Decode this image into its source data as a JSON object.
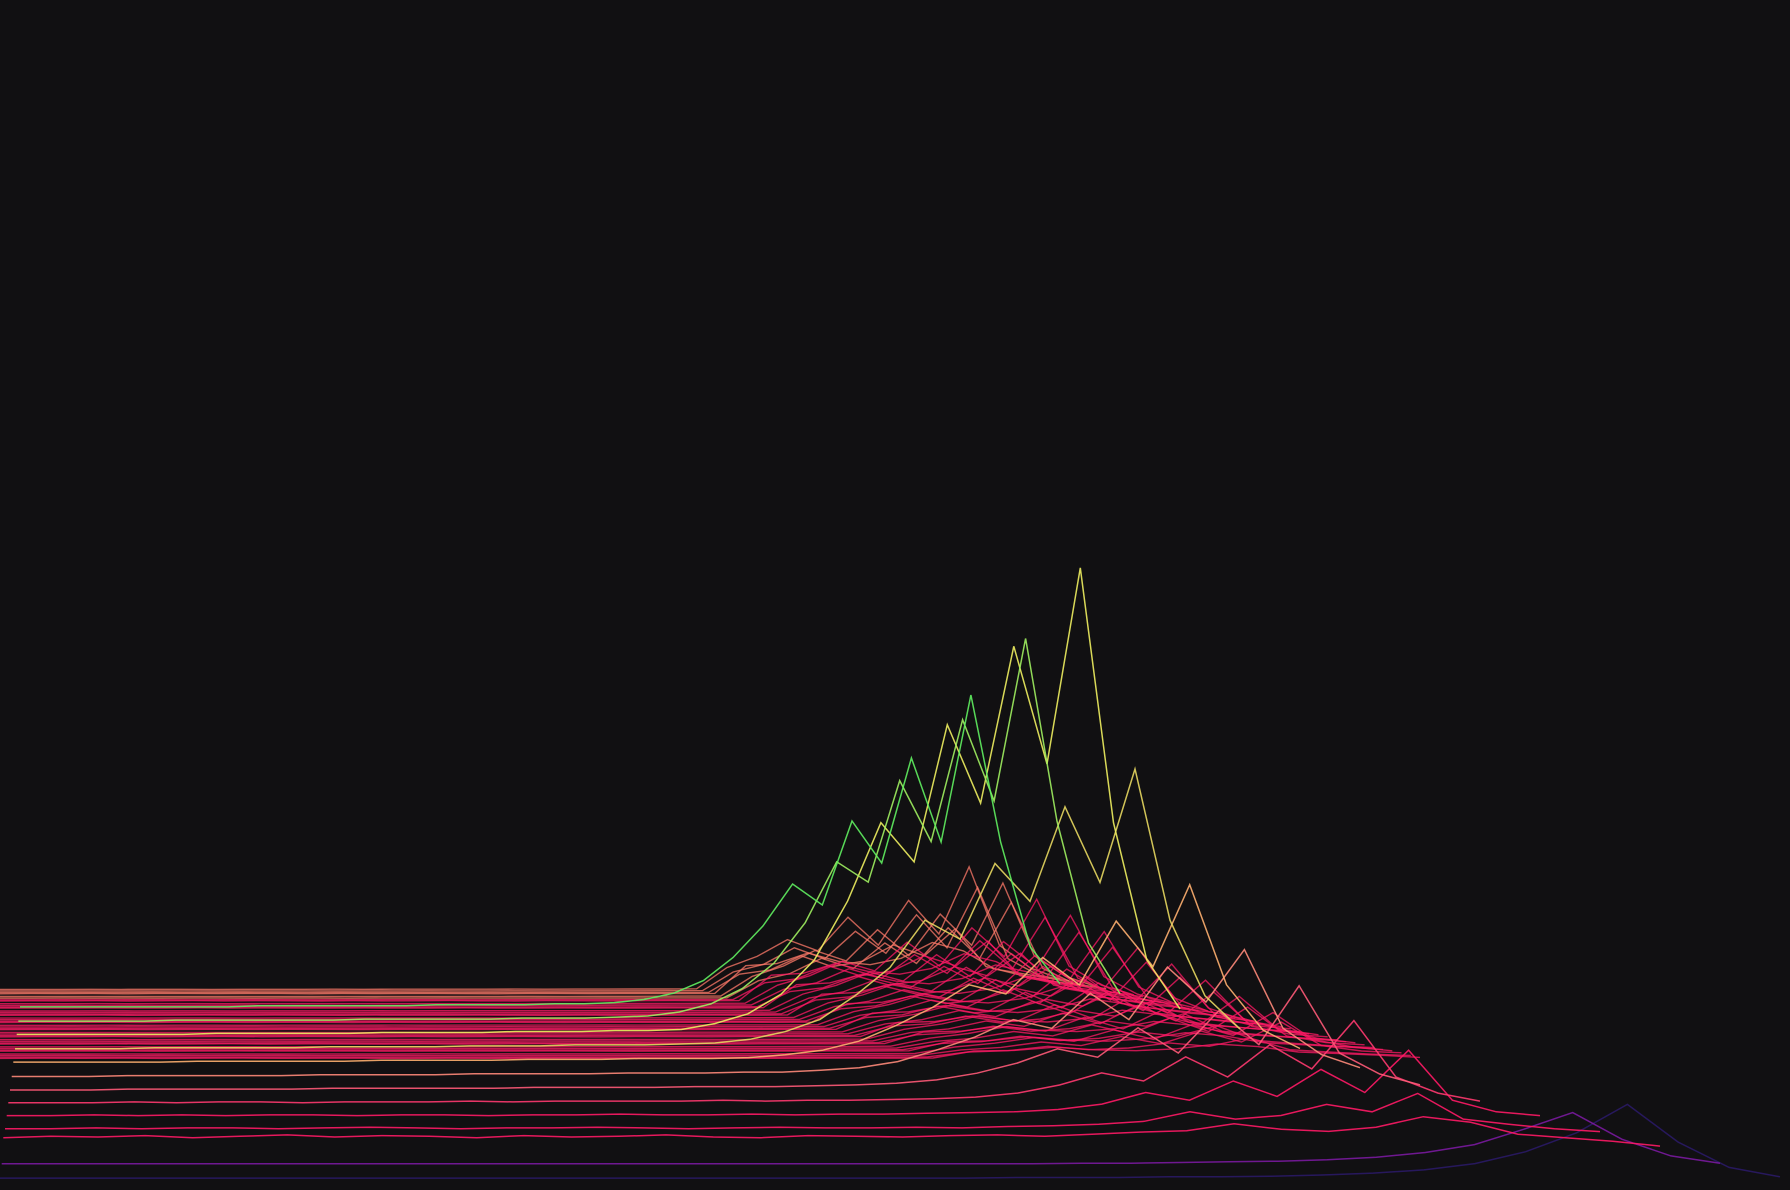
{
  "chart_data": {
    "type": "line",
    "background_color": "#111012",
    "grid": false,
    "legend": "none",
    "color_stops": [
      "#2a1a66",
      "#7a1aa0",
      "#ff1a66",
      "#ff7a7a",
      "#f0f060",
      "#60f060"
    ],
    "series": [
      {
        "color": "#2a1a66",
        "values": [
          0.3,
          0.3,
          0.3,
          0.3,
          0.3,
          0.3,
          0.3,
          0.3,
          0.3,
          0.3,
          0.3,
          0.3,
          0.3,
          0.3,
          0.3,
          0.3,
          0.3,
          0.3,
          0.3,
          0.3,
          0.4,
          0.4,
          0.4,
          0.5,
          0.5,
          0.6,
          0.8,
          1.1,
          1.6,
          2.6,
          4.5,
          7.5,
          12,
          6.0,
          2.0,
          0.5
        ]
      },
      {
        "color": "#7a1aa0",
        "values": [
          0.3,
          0.3,
          0.3,
          0.3,
          0.3,
          0.3,
          0.3,
          0.3,
          0.3,
          0.3,
          0.3,
          0.3,
          0.3,
          0.3,
          0.3,
          0.3,
          0.3,
          0.3,
          0.3,
          0.3,
          0.3,
          0.3,
          0.4,
          0.4,
          0.5,
          0.6,
          0.7,
          0.9,
          1.3,
          2.0,
          3.2,
          5.5,
          8,
          4.0,
          1.5,
          0.4
        ]
      },
      {
        "color": "#ff1a66",
        "values": [
          2.0,
          2.2,
          2.1,
          2.3,
          2.0,
          2.2,
          2.4,
          2.1,
          2.3,
          2.2,
          2.0,
          2.3,
          2.1,
          2.2,
          2.4,
          2.1,
          2.0,
          2.3,
          2.2,
          2.1,
          2.3,
          2.4,
          2.2,
          2.5,
          2.8,
          3.0,
          4.0,
          3.2,
          2.9,
          3.5,
          5.0,
          4.2,
          2.5,
          2.0,
          1.5,
          0.8
        ]
      },
      {
        "color": "#ff1a66",
        "values": [
          1.2,
          1.2,
          1.3,
          1.2,
          1.3,
          1.3,
          1.2,
          1.3,
          1.4,
          1.3,
          1.2,
          1.3,
          1.3,
          1.4,
          1.3,
          1.2,
          1.3,
          1.4,
          1.3,
          1.3,
          1.4,
          1.3,
          1.5,
          1.6,
          1.8,
          2.2,
          3.5,
          2.5,
          3.0,
          4.5,
          3.5,
          6.0,
          2.5,
          1.8,
          1.2,
          0.8
        ]
      },
      {
        "color": "#ff1a66",
        "values": [
          1.0,
          1.0,
          1.1,
          1.0,
          1.1,
          1.0,
          1.1,
          1.1,
          1.0,
          1.1,
          1.1,
          1.0,
          1.1,
          1.1,
          1.2,
          1.1,
          1.1,
          1.2,
          1.1,
          1.2,
          1.2,
          1.3,
          1.4,
          1.5,
          1.8,
          2.5,
          4.0,
          3.0,
          5.5,
          3.5,
          7.0,
          4.0,
          9.5,
          3.0,
          1.5,
          1.0
        ]
      },
      {
        "color": "#ff3a70",
        "values": [
          0.8,
          0.8,
          0.8,
          0.9,
          0.8,
          0.9,
          0.9,
          0.8,
          0.9,
          0.9,
          0.9,
          1.0,
          0.9,
          1.0,
          1.0,
          1.0,
          1.0,
          1.1,
          1.0,
          1.1,
          1.1,
          1.2,
          1.3,
          1.5,
          2.0,
          3.0,
          4.5,
          3.5,
          6.5,
          4.0,
          8.0,
          5.0,
          11.0,
          4.0,
          2.0,
          1.0
        ]
      },
      {
        "color": "#ff5a78",
        "values": [
          0.6,
          0.6,
          0.6,
          0.7,
          0.7,
          0.7,
          0.7,
          0.7,
          0.8,
          0.8,
          0.8,
          0.8,
          0.8,
          0.9,
          0.9,
          0.9,
          0.9,
          1.0,
          1.0,
          1.0,
          1.1,
          1.2,
          1.4,
          1.8,
          2.6,
          3.8,
          5.5,
          4.5,
          8.0,
          5.0,
          10.0,
          6.0,
          13.0,
          5.0,
          2.5,
          1.2
        ]
      },
      {
        "color": "#ff8a7a",
        "values": [
          0.5,
          0.5,
          0.5,
          0.6,
          0.6,
          0.6,
          0.6,
          0.6,
          0.7,
          0.7,
          0.7,
          0.7,
          0.8,
          0.8,
          0.8,
          0.8,
          0.9,
          0.9,
          0.9,
          1.0,
          1.0,
          1.2,
          1.5,
          2.2,
          3.5,
          5.0,
          7.0,
          6.0,
          10.0,
          7.0,
          13.0,
          9.0,
          15.0,
          6.0,
          3.0,
          1.5
        ]
      },
      {
        "color": "#ffb070",
        "values": [
          0.5,
          0.5,
          0.5,
          0.5,
          0.5,
          0.6,
          0.6,
          0.6,
          0.6,
          0.6,
          0.7,
          0.7,
          0.7,
          0.7,
          0.8,
          0.8,
          0.8,
          0.9,
          0.9,
          0.9,
          1.0,
          1.3,
          1.8,
          2.8,
          4.5,
          6.5,
          9.0,
          8.0,
          12.0,
          9.0,
          16.0,
          11.0,
          20.0,
          9.0,
          4.0,
          2.0
        ]
      },
      {
        "color": "#e8d860",
        "values": [
          0.4,
          0.4,
          0.4,
          0.4,
          0.5,
          0.5,
          0.5,
          0.5,
          0.5,
          0.6,
          0.6,
          0.6,
          0.6,
          0.7,
          0.7,
          0.7,
          0.8,
          0.8,
          0.8,
          0.9,
          1.0,
          1.4,
          2.2,
          3.5,
          6.0,
          9.0,
          14.0,
          12.0,
          20.0,
          16.0,
          26.0,
          18.0,
          30.0,
          14.0,
          6.0,
          2.5
        ]
      },
      {
        "color": "#f0f060",
        "values": [
          0.4,
          0.4,
          0.4,
          0.4,
          0.4,
          0.4,
          0.5,
          0.5,
          0.5,
          0.5,
          0.5,
          0.6,
          0.6,
          0.6,
          0.6,
          0.7,
          0.7,
          0.7,
          0.8,
          0.8,
          0.9,
          1.5,
          2.5,
          4.5,
          8.0,
          14.0,
          22.0,
          18.0,
          32.0,
          24.0,
          40.0,
          28.0,
          48.0,
          22.0,
          8.0,
          3.0
        ]
      },
      {
        "color": "#a0f060",
        "values": [
          0.3,
          0.3,
          0.3,
          0.3,
          0.3,
          0.4,
          0.4,
          0.4,
          0.4,
          0.4,
          0.4,
          0.5,
          0.5,
          0.5,
          0.5,
          0.5,
          0.6,
          0.6,
          0.6,
          0.7,
          0.8,
          1.2,
          2.0,
          3.5,
          6.0,
          10.0,
          16.0,
          14.0,
          24.0,
          18.0,
          30.0,
          22.0,
          38.0,
          20.0,
          8.0,
          3.0
        ]
      },
      {
        "color": "#60f060",
        "values": [
          0.3,
          0.3,
          0.3,
          0.3,
          0.3,
          0.3,
          0.3,
          0.3,
          0.4,
          0.4,
          0.4,
          0.4,
          0.4,
          0.4,
          0.5,
          0.5,
          0.5,
          0.5,
          0.6,
          0.6,
          0.7,
          1.0,
          1.6,
          2.8,
          5.0,
          8.0,
          12.0,
          10.0,
          18.0,
          14.0,
          24.0,
          16.0,
          30.0,
          16.0,
          6.0,
          2.5
        ]
      }
    ]
  }
}
